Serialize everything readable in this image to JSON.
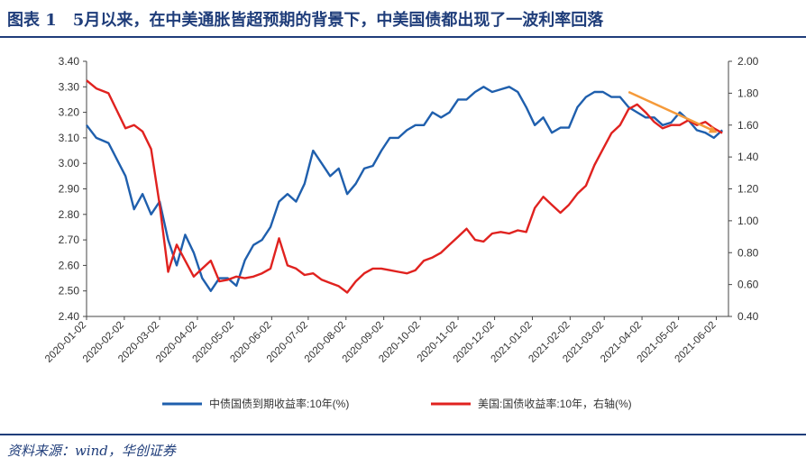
{
  "title": "图表 1　5月以来，在中美通胀皆超预期的背景下，中美国债都出现了一波利率回落",
  "source": "资料来源：wind，华创证券",
  "chart_data": {
    "type": "line",
    "title": "",
    "x_tick_labels": [
      "2020-01-02",
      "2020-02-02",
      "2020-03-02",
      "2020-04-02",
      "2020-05-02",
      "2020-06-02",
      "2020-07-02",
      "2020-08-02",
      "2020-09-02",
      "2020-10-02",
      "2020-11-02",
      "2020-12-02",
      "2021-01-02",
      "2021-02-02",
      "2021-03-02",
      "2021-04-02",
      "2021-05-02",
      "2021-06-02"
    ],
    "left_axis": {
      "ylim": [
        2.4,
        3.4
      ],
      "ticks": [
        "2.40",
        "2.50",
        "2.60",
        "2.70",
        "2.80",
        "2.90",
        "3.00",
        "3.10",
        "3.20",
        "3.30",
        "3.40"
      ]
    },
    "right_axis": {
      "ylim": [
        0.4,
        2.0
      ],
      "ticks": [
        "0.40",
        "0.60",
        "0.80",
        "1.00",
        "1.20",
        "1.40",
        "1.60",
        "1.80",
        "2.00"
      ]
    },
    "series": [
      {
        "name": "中债国债到期收益率:10年(%)",
        "axis": "left",
        "color": "#1f5fad",
        "x": [
          "2020-01-02",
          "2020-01-10",
          "2020-01-20",
          "2020-02-03",
          "2020-02-10",
          "2020-02-17",
          "2020-02-24",
          "2020-03-02",
          "2020-03-09",
          "2020-03-16",
          "2020-03-23",
          "2020-03-30",
          "2020-04-06",
          "2020-04-13",
          "2020-04-20",
          "2020-04-27",
          "2020-05-04",
          "2020-05-11",
          "2020-05-18",
          "2020-05-25",
          "2020-06-01",
          "2020-06-08",
          "2020-06-15",
          "2020-06-22",
          "2020-06-29",
          "2020-07-06",
          "2020-07-13",
          "2020-07-20",
          "2020-07-27",
          "2020-08-03",
          "2020-08-10",
          "2020-08-17",
          "2020-08-24",
          "2020-08-31",
          "2020-09-07",
          "2020-09-14",
          "2020-09-21",
          "2020-09-28",
          "2020-10-05",
          "2020-10-12",
          "2020-10-19",
          "2020-10-26",
          "2020-11-02",
          "2020-11-09",
          "2020-11-16",
          "2020-11-23",
          "2020-11-30",
          "2020-12-07",
          "2020-12-14",
          "2020-12-21",
          "2020-12-28",
          "2021-01-04",
          "2021-01-11",
          "2021-01-18",
          "2021-01-25",
          "2021-02-01",
          "2021-02-08",
          "2021-02-15",
          "2021-02-22",
          "2021-03-01",
          "2021-03-08",
          "2021-03-15",
          "2021-03-22",
          "2021-03-29",
          "2021-04-05",
          "2021-04-12",
          "2021-04-19",
          "2021-04-26",
          "2021-05-03",
          "2021-05-10",
          "2021-05-17",
          "2021-05-24",
          "2021-05-31",
          "2021-06-07"
        ],
        "values": [
          3.15,
          3.1,
          3.08,
          2.95,
          2.82,
          2.88,
          2.8,
          2.85,
          2.7,
          2.6,
          2.72,
          2.65,
          2.55,
          2.5,
          2.55,
          2.55,
          2.52,
          2.62,
          2.68,
          2.7,
          2.75,
          2.85,
          2.88,
          2.85,
          2.92,
          3.05,
          3.0,
          2.95,
          2.98,
          2.88,
          2.92,
          2.98,
          2.99,
          3.05,
          3.1,
          3.1,
          3.13,
          3.15,
          3.15,
          3.2,
          3.18,
          3.2,
          3.25,
          3.25,
          3.28,
          3.3,
          3.28,
          3.29,
          3.3,
          3.28,
          3.22,
          3.15,
          3.18,
          3.12,
          3.14,
          3.14,
          3.22,
          3.26,
          3.28,
          3.28,
          3.26,
          3.26,
          3.22,
          3.2,
          3.18,
          3.18,
          3.15,
          3.16,
          3.2,
          3.17,
          3.13,
          3.12,
          3.1,
          3.13
        ]
      },
      {
        "name": "美国:国债收益率:10年，右轴(%)",
        "axis": "right",
        "color": "#e0221f",
        "x": [
          "2020-01-02",
          "2020-01-10",
          "2020-01-20",
          "2020-02-03",
          "2020-02-10",
          "2020-02-17",
          "2020-02-24",
          "2020-03-02",
          "2020-03-09",
          "2020-03-16",
          "2020-03-23",
          "2020-03-30",
          "2020-04-06",
          "2020-04-13",
          "2020-04-20",
          "2020-04-27",
          "2020-05-04",
          "2020-05-11",
          "2020-05-18",
          "2020-05-25",
          "2020-06-01",
          "2020-06-08",
          "2020-06-15",
          "2020-06-22",
          "2020-06-29",
          "2020-07-06",
          "2020-07-13",
          "2020-07-20",
          "2020-07-27",
          "2020-08-03",
          "2020-08-10",
          "2020-08-17",
          "2020-08-24",
          "2020-08-31",
          "2020-09-07",
          "2020-09-14",
          "2020-09-21",
          "2020-09-28",
          "2020-10-05",
          "2020-10-12",
          "2020-10-19",
          "2020-10-26",
          "2020-11-02",
          "2020-11-09",
          "2020-11-16",
          "2020-11-23",
          "2020-11-30",
          "2020-12-07",
          "2020-12-14",
          "2020-12-21",
          "2020-12-28",
          "2021-01-04",
          "2021-01-11",
          "2021-01-18",
          "2021-01-25",
          "2021-02-01",
          "2021-02-08",
          "2021-02-15",
          "2021-02-22",
          "2021-03-01",
          "2021-03-08",
          "2021-03-15",
          "2021-03-22",
          "2021-03-29",
          "2021-04-05",
          "2021-04-12",
          "2021-04-19",
          "2021-04-26",
          "2021-05-03",
          "2021-05-10",
          "2021-05-17",
          "2021-05-24",
          "2021-05-31",
          "2021-06-07"
        ],
        "values": [
          1.88,
          1.83,
          1.8,
          1.58,
          1.6,
          1.56,
          1.45,
          1.1,
          0.68,
          0.85,
          0.75,
          0.65,
          0.7,
          0.75,
          0.62,
          0.63,
          0.65,
          0.64,
          0.65,
          0.67,
          0.7,
          0.89,
          0.72,
          0.7,
          0.66,
          0.67,
          0.63,
          0.61,
          0.59,
          0.55,
          0.62,
          0.67,
          0.7,
          0.7,
          0.69,
          0.68,
          0.67,
          0.69,
          0.75,
          0.77,
          0.8,
          0.85,
          0.9,
          0.95,
          0.88,
          0.87,
          0.92,
          0.93,
          0.92,
          0.94,
          0.93,
          1.08,
          1.15,
          1.1,
          1.05,
          1.1,
          1.17,
          1.22,
          1.35,
          1.45,
          1.55,
          1.6,
          1.7,
          1.73,
          1.68,
          1.62,
          1.58,
          1.6,
          1.6,
          1.63,
          1.6,
          1.62,
          1.58,
          1.55
        ]
      }
    ],
    "annotation": {
      "type": "arrow",
      "color": "#f59a3a"
    }
  }
}
